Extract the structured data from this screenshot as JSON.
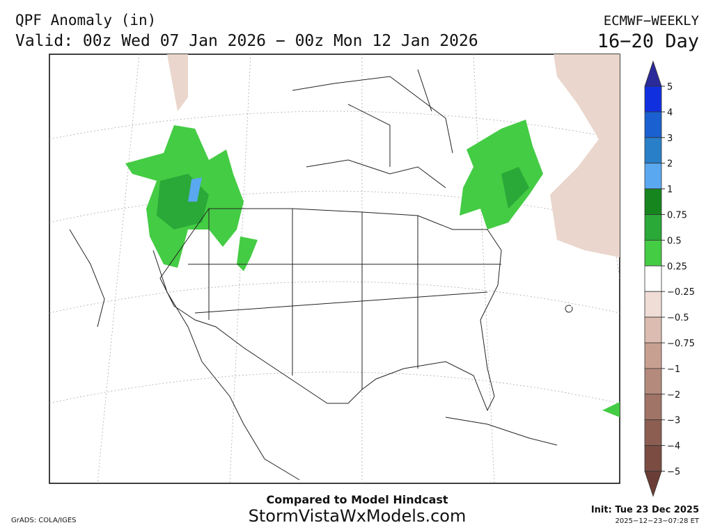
{
  "header": {
    "title": "QPF Anomaly (in)",
    "model": "ECMWF−WEEKLY",
    "valid": "Valid: 00z Wed 07 Jan 2026 − 00z Mon 12 Jan 2026",
    "range": "16−20 Day"
  },
  "colorbar": {
    "labels": [
      "5",
      "4",
      "3",
      "2",
      "1",
      "0.75",
      "0.5",
      "0.25",
      "−0.25",
      "−0.5",
      "−0.75",
      "−1",
      "−2",
      "−3",
      "−4",
      "−5"
    ],
    "colors": [
      "#2a2a9a",
      "#1030e0",
      "#1a60d0",
      "#2a80c8",
      "#5aa8f0",
      "#16851e",
      "#2aa838",
      "#44cc44",
      "#ffffff",
      "#f0ddd6",
      "#dcbcb0",
      "#c8a092",
      "#b48a7c",
      "#a07466",
      "#8c5e52",
      "#7a4c42",
      "#6a3e36"
    ]
  },
  "footer": {
    "note": "Compared to Model Hindcast",
    "site": "StormVistaWxModels.com",
    "credit": "GrADS: COLA/IGES",
    "init": "Init: Tue 23 Dec 2025",
    "stamp": "2025−12−23−07:28 ET"
  }
}
